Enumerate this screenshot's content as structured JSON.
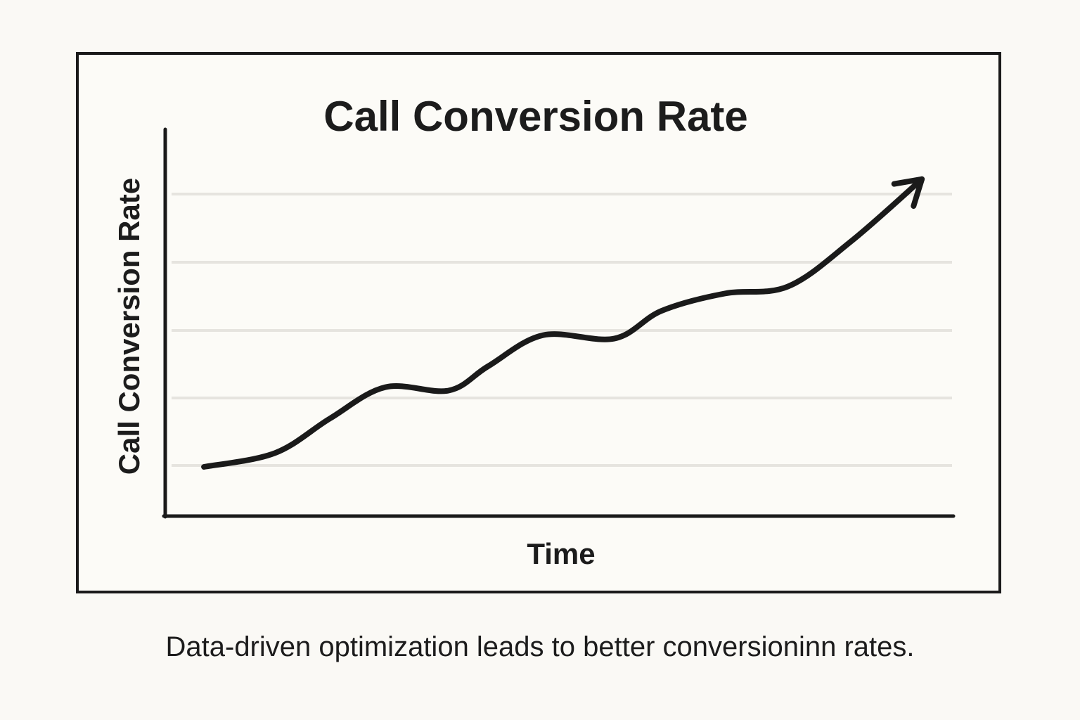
{
  "chart_data": {
    "type": "line",
    "title": "Call Conversion Rate",
    "xlabel": "Time",
    "ylabel": "Call Conversion Rate",
    "grid": true,
    "legend": "none",
    "x_ticks_labeled": false,
    "y_ticks_labeled": false,
    "xlim": [
      0,
      100
    ],
    "ylim": [
      0,
      100
    ],
    "end_marker": "arrow",
    "series": [
      {
        "color": "#1a1a1a",
        "points": [
          [
            5,
            14
          ],
          [
            14,
            18
          ],
          [
            21,
            28
          ],
          [
            28,
            37
          ],
          [
            36,
            36
          ],
          [
            41,
            43
          ],
          [
            48,
            52
          ],
          [
            57,
            51
          ],
          [
            63,
            59
          ],
          [
            71,
            64
          ],
          [
            79,
            66
          ],
          [
            87,
            79
          ],
          [
            96,
            97
          ]
        ]
      }
    ]
  },
  "caption": "Data-driven optimization leads to better conversioninn rates."
}
